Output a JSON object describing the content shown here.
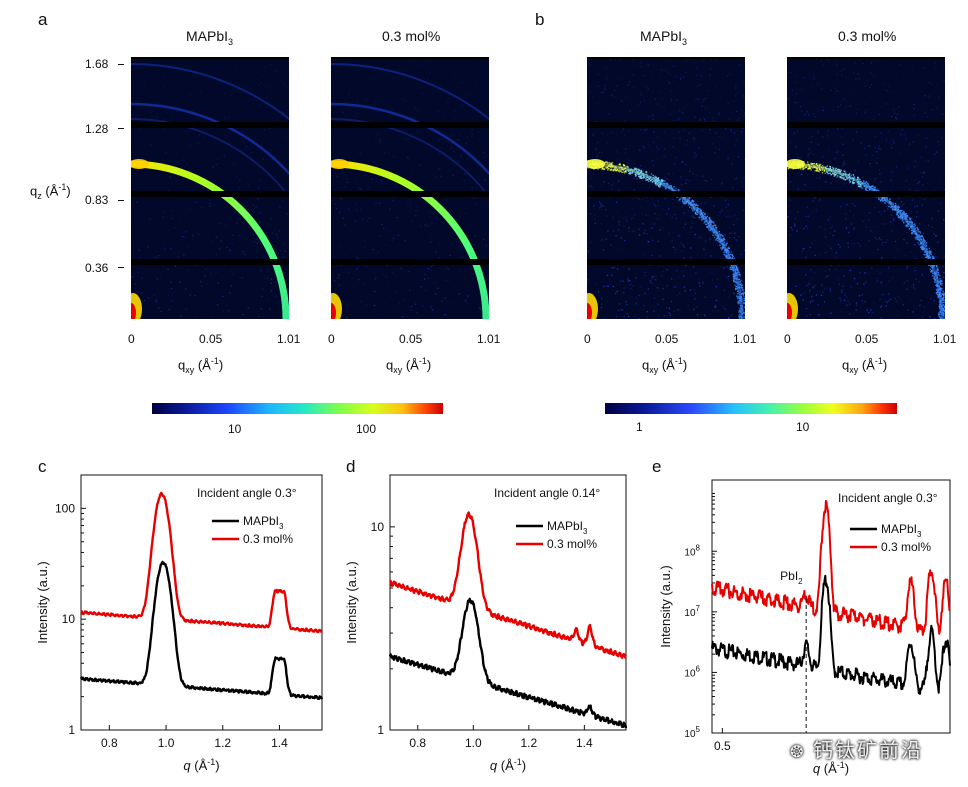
{
  "panels": {
    "a": {
      "letter": "a",
      "titles": [
        "MAPbI",
        "0.3 mol%"
      ],
      "title_sub": "3",
      "y_ticks": [
        "1.68",
        "1.28",
        "0.83",
        "0.36"
      ],
      "y_label": "q",
      "y_label_sub": "z",
      "y_label_unit": " (Å",
      "x_ticks": [
        "0",
        "0.05",
        "1.01"
      ],
      "x_label": "q",
      "x_label_sub": "xy",
      "x_label_unit": " (Å",
      "unit_exp": "-1",
      "close": ")",
      "colorbar_ticks": [
        "10",
        "100"
      ]
    },
    "b": {
      "letter": "b",
      "titles": [
        "MAPbI",
        "0.3 mol%"
      ],
      "title_sub": "3",
      "x_ticks": [
        "0",
        "0.05",
        "1.01"
      ],
      "colorbar_ticks": [
        "1",
        "10"
      ]
    }
  },
  "chart_data": [
    {
      "panel": "c",
      "type": "line",
      "annotation": "Incident angle 0.3°",
      "xlabel": "q (Å-1)",
      "ylabel": "Intensity (a.u.)",
      "xlim": [
        0.7,
        1.55
      ],
      "ylim": [
        1,
        200
      ],
      "yscale": "log",
      "x_ticks": [
        "0.8",
        "1.0",
        "1.2",
        "1.4"
      ],
      "y_ticks": [
        "1",
        "10",
        "100"
      ],
      "series": [
        {
          "name": "MAPbI3",
          "color": "#000000",
          "baseline": [
            [
              0.7,
              2.9
            ],
            [
              1.55,
              1.95
            ]
          ],
          "peaks": [
            {
              "center": 0.99,
              "height": 30,
              "width": 0.022
            },
            {
              "center": 1.4,
              "height": 2.3,
              "width": 0.018,
              "flat": true
            }
          ]
        },
        {
          "name": "0.3 mol%",
          "color": "#e80000",
          "baseline": [
            [
              0.7,
              11.5
            ],
            [
              1.55,
              7.8
            ]
          ],
          "peaks": [
            {
              "center": 0.985,
              "height": 125,
              "width": 0.022
            },
            {
              "center": 1.4,
              "height": 9.5,
              "width": 0.018,
              "flat": true
            }
          ]
        }
      ]
    },
    {
      "panel": "d",
      "type": "line",
      "annotation": "Incident angle 0.14°",
      "xlabel": "q (Å-1)",
      "ylabel": "Intensity (a.u.)",
      "xlim": [
        0.7,
        1.55
      ],
      "ylim": [
        1,
        18
      ],
      "yscale": "log",
      "x_ticks": [
        "0.8",
        "1.0",
        "1.2",
        "1.4"
      ],
      "y_ticks": [
        "1",
        "10"
      ],
      "series": [
        {
          "name": "MAPbI3",
          "color": "#000000",
          "baseline": [
            [
              0.7,
              2.3
            ],
            [
              1.55,
              1.05
            ]
          ],
          "peaks": [
            {
              "center": 0.99,
              "height": 2.6,
              "width": 0.025
            },
            {
              "center": 1.42,
              "height": 0.12,
              "width": 0.008
            }
          ]
        },
        {
          "name": "0.3 mol%",
          "color": "#e80000",
          "baseline": [
            [
              0.7,
              5.3
            ],
            [
              1.55,
              2.3
            ]
          ],
          "peaks": [
            {
              "center": 0.985,
              "height": 7.5,
              "width": 0.025
            },
            {
              "center": 1.37,
              "height": 0.35,
              "width": 0.008
            },
            {
              "center": 1.42,
              "height": 0.6,
              "width": 0.008
            }
          ]
        }
      ]
    },
    {
      "panel": "e",
      "type": "line",
      "annotation": "Incident angle 0.3°",
      "xlabel": "q (Å-1)",
      "ylabel": "Intensity (a.u.)",
      "xlim": [
        0.45,
        1.6
      ],
      "ylim": [
        100000,
        1500000000
      ],
      "yscale": "log",
      "x_ticks": [
        "0.5"
      ],
      "y_ticks": [
        "10^5",
        "10^6",
        "10^7",
        "10^8"
      ],
      "marker_label": "PbI2",
      "marker_x": 0.905,
      "series": [
        {
          "name": "MAPbI3",
          "color": "#000000",
          "baseline": [
            [
              0.45,
              2500000
            ],
            [
              1.6,
              450000
            ]
          ],
          "peaks": [
            {
              "center": 0.905,
              "height": 1500000,
              "width": 0.012
            },
            {
              "center": 1.0,
              "height": 33000000,
              "width": 0.012
            },
            {
              "center": 1.41,
              "height": 2500000,
              "width": 0.012
            },
            {
              "center": 1.51,
              "height": 4000000,
              "width": 0.012
            },
            {
              "center": 1.58,
              "height": 2900000,
              "width": 0.012
            }
          ]
        },
        {
          "name": "0.3 mol%",
          "color": "#e80000",
          "baseline": [
            [
              0.45,
              25000000
            ],
            [
              1.6,
              4000000
            ]
          ],
          "peaks": [
            {
              "center": 0.905,
              "height": 6000000,
              "width": 0.012
            },
            {
              "center": 1.0,
              "height": 550000000,
              "width": 0.012
            },
            {
              "center": 1.41,
              "height": 25000000,
              "width": 0.012
            },
            {
              "center": 1.51,
              "height": 45000000,
              "width": 0.012
            },
            {
              "center": 1.58,
              "height": 28000000,
              "width": 0.012
            }
          ]
        }
      ]
    }
  ],
  "watermark": "钙钛矿前沿"
}
